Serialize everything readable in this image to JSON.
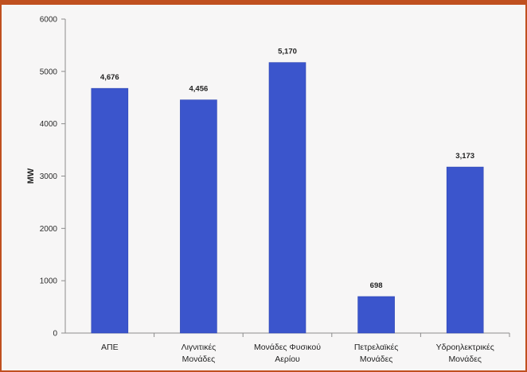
{
  "chart_data": {
    "type": "bar",
    "categories": [
      [
        "ΑΠΕ"
      ],
      [
        "Λιγνιτικές",
        "Μονάδες"
      ],
      [
        "Μονάδες Φυσικού",
        "Αερίου"
      ],
      [
        "Πετρελαϊκές",
        "Μονάδες"
      ],
      [
        "Υδροηλεκτρικές",
        "Μονάδες"
      ]
    ],
    "values": [
      4676,
      4456,
      5170,
      698,
      3173
    ],
    "data_labels": [
      "4,676",
      "4,456",
      "5,170",
      "698",
      "3,173"
    ],
    "ylabel": "MW",
    "ylim": [
      0,
      6000
    ],
    "yticks": [
      0,
      1000,
      2000,
      3000,
      4000,
      5000,
      6000
    ],
    "grid": false,
    "bar_color": "#3b55cc",
    "frame_color": "#c0501f"
  }
}
